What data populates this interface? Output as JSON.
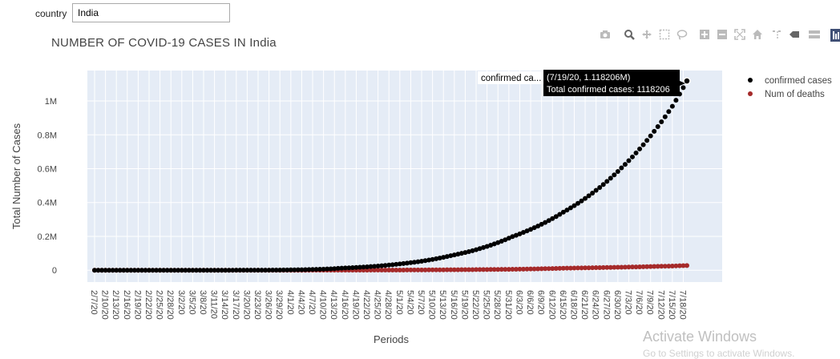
{
  "controls": {
    "country_label": "country",
    "country_value": "India"
  },
  "modebar": {
    "icons": [
      "camera-icon",
      "zoom-icon",
      "pan-icon",
      "box-select-icon",
      "lasso-select-icon",
      "zoom-in-icon",
      "zoom-out-icon",
      "autoscale-icon",
      "reset-axes-icon",
      "spike-lines-icon",
      "compare-hover-icon",
      "closest-hover-icon",
      "plotly-logo-icon"
    ]
  },
  "watermark": {
    "line1": "Activate Windows",
    "line2": "Go to Settings to activate Windows."
  },
  "colors": {
    "plot_bg": "#e5ecf6",
    "confirmed": "#000000",
    "deaths": "#a52a2a"
  },
  "chart_data": {
    "type": "scatter",
    "title": "NUMBER OF COVID-19 CASES IN India",
    "xlabel": "Periods",
    "ylabel": "Total Number of Cases",
    "x_start": "2/7/20",
    "x_end": "7/19/20",
    "x_tick_labels": [
      "2/7/20",
      "2/10/20",
      "2/13/20",
      "2/16/20",
      "2/19/20",
      "2/22/20",
      "2/25/20",
      "2/28/20",
      "3/2/20",
      "3/5/20",
      "3/8/20",
      "3/11/20",
      "3/14/20",
      "3/17/20",
      "3/20/20",
      "3/23/20",
      "3/26/20",
      "3/29/20",
      "4/1/20",
      "4/4/20",
      "4/7/20",
      "4/10/20",
      "4/13/20",
      "4/16/20",
      "4/19/20",
      "4/22/20",
      "4/25/20",
      "4/28/20",
      "5/1/20",
      "5/4/20",
      "5/7/20",
      "5/10/20",
      "5/13/20",
      "5/16/20",
      "5/19/20",
      "5/22/20",
      "5/25/20",
      "5/28/20",
      "5/31/20",
      "6/3/20",
      "6/6/20",
      "6/9/20",
      "6/12/20",
      "6/15/20",
      "6/18/20",
      "6/21/20",
      "6/24/20",
      "6/27/20",
      "6/30/20",
      "7/3/20",
      "7/6/20",
      "7/9/20",
      "7/12/20",
      "7/15/20",
      "7/18/20"
    ],
    "y_ticks": [
      0,
      200000,
      400000,
      600000,
      800000,
      1000000
    ],
    "y_tick_labels": [
      "0",
      "0.2M",
      "0.4M",
      "0.6M",
      "0.8M",
      "1M"
    ],
    "ylim": [
      -70000,
      1180000
    ],
    "grid": true,
    "legend_position": "top-right",
    "series": [
      {
        "name": "confirmed cases",
        "color": "#000000",
        "anchors": [
          [
            "2/7/20",
            3
          ],
          [
            "3/1/20",
            3
          ],
          [
            "3/15/20",
            110
          ],
          [
            "4/1/20",
            1998
          ],
          [
            "4/15/20",
            12380
          ],
          [
            "5/1/20",
            37336
          ],
          [
            "5/15/20",
            85940
          ],
          [
            "6/1/20",
            198706
          ],
          [
            "6/15/20",
            343091
          ],
          [
            "7/1/20",
            604641
          ],
          [
            "7/10/20",
            820916
          ],
          [
            "7/15/20",
            968876
          ],
          [
            "7/19/20",
            1118206
          ]
        ]
      },
      {
        "name": "Num of deaths",
        "color": "#a52a2a",
        "anchors": [
          [
            "2/7/20",
            0
          ],
          [
            "3/15/20",
            2
          ],
          [
            "4/1/20",
            58
          ],
          [
            "4/15/20",
            420
          ],
          [
            "5/1/20",
            1223
          ],
          [
            "5/15/20",
            2752
          ],
          [
            "6/1/20",
            5598
          ],
          [
            "6/15/20",
            11903
          ],
          [
            "7/1/20",
            17834
          ],
          [
            "7/19/20",
            27497
          ]
        ]
      }
    ],
    "hover": {
      "series_label": "confirmed ca...",
      "line1": "(7/19/20, 1.118206M)",
      "line2": "Total confirmed cases: 1118206"
    }
  }
}
